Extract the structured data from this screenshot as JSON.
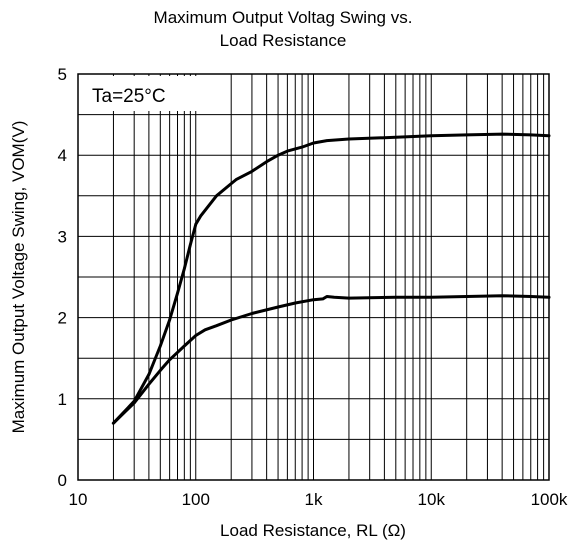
{
  "chart_data": {
    "type": "line",
    "title_lines": [
      "Maximum Output Voltag Swing vs.",
      "Load Resistance"
    ],
    "xlabel": "Load Resistance, RL (Ω)",
    "ylabel": "Maximum Output Voltage Swing, VOM(V)",
    "annotation": "Ta=25°C",
    "x_scale": "log",
    "xlim": [
      10,
      100000
    ],
    "ylim": [
      0,
      5
    ],
    "x_ticks": [
      10,
      100,
      1000,
      10000,
      100000
    ],
    "x_tick_labels": [
      "10",
      "100",
      "1k",
      "10k",
      "100k"
    ],
    "y_ticks": [
      0,
      1,
      2,
      3,
      4,
      5
    ],
    "y_tick_labels": [
      "0",
      "1",
      "2",
      "3",
      "4",
      "5"
    ],
    "grid": true,
    "line_color": "#000000",
    "series": [
      {
        "x": [
          20,
          30,
          40,
          50,
          60,
          70,
          80,
          90,
          100,
          110,
          150,
          200,
          220,
          300,
          400,
          500,
          600,
          800,
          1000,
          1300,
          2000,
          5000,
          10000,
          20000,
          40000,
          70000,
          100000
        ],
        "y": [
          0.7,
          0.97,
          1.3,
          1.65,
          1.97,
          2.3,
          2.6,
          2.9,
          3.15,
          3.25,
          3.5,
          3.65,
          3.7,
          3.8,
          3.92,
          4.0,
          4.05,
          4.1,
          4.15,
          4.18,
          4.2,
          4.22,
          4.24,
          4.25,
          4.26,
          4.25,
          4.24
        ]
      },
      {
        "x": [
          20,
          30,
          40,
          50,
          60,
          80,
          100,
          120,
          150,
          200,
          300,
          500,
          700,
          1000,
          1200,
          1300,
          1500,
          2000,
          5000,
          10000,
          20000,
          40000,
          70000,
          100000
        ],
        "y": [
          0.7,
          0.95,
          1.18,
          1.35,
          1.48,
          1.65,
          1.78,
          1.85,
          1.9,
          1.97,
          2.05,
          2.13,
          2.18,
          2.22,
          2.23,
          2.26,
          2.25,
          2.24,
          2.25,
          2.25,
          2.26,
          2.27,
          2.26,
          2.25
        ]
      }
    ]
  }
}
